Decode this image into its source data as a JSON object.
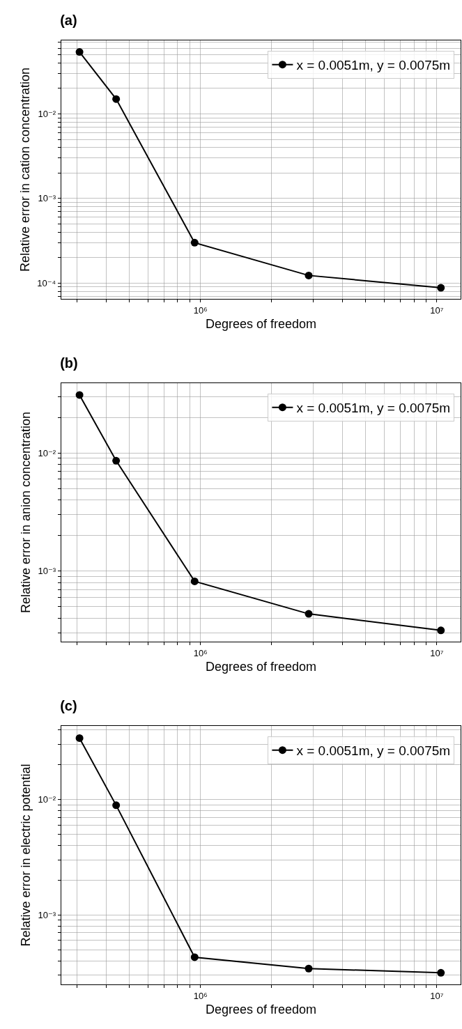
{
  "chart_data": [
    {
      "type": "line",
      "title": "(a)",
      "xlabel": "Degrees of freedom",
      "ylabel": "Relative error in cation concentration",
      "log": "xy",
      "grid": true,
      "legend": "top right",
      "marker": "circle",
      "line_style": "solid",
      "x": [
        308000,
        440000,
        945000,
        2870000,
        10400000
      ],
      "series": [
        {
          "name": "x = 0.0051m, y = 0.0075m",
          "color": "#000000",
          "values": [
            0.054,
            0.015,
            0.0003,
            0.000123,
            8.8e-05
          ]
        }
      ],
      "xlim": [
        258000,
        12600000
      ],
      "ylim": [
        6.5e-05,
        0.074
      ],
      "xticks": [
        {
          "value": 300000,
          "label": null
        },
        {
          "value": 400000,
          "label": null
        },
        {
          "value": 500000,
          "label": null
        },
        {
          "value": 600000,
          "label": null
        },
        {
          "value": 700000,
          "label": null
        },
        {
          "value": 800000,
          "label": null
        },
        {
          "value": 900000,
          "label": null
        },
        {
          "value": 1000000,
          "label": "10⁶"
        },
        {
          "value": 2000000,
          "label": null
        },
        {
          "value": 3000000,
          "label": null
        },
        {
          "value": 4000000,
          "label": null
        },
        {
          "value": 5000000,
          "label": null
        },
        {
          "value": 6000000,
          "label": null
        },
        {
          "value": 7000000,
          "label": null
        },
        {
          "value": 8000000,
          "label": null
        },
        {
          "value": 9000000,
          "label": null
        },
        {
          "value": 10000000,
          "label": "10⁷"
        }
      ],
      "yticks": [
        {
          "value": 7e-05,
          "label": null
        },
        {
          "value": 8e-05,
          "label": null
        },
        {
          "value": 9e-05,
          "label": null
        },
        {
          "value": 0.0001,
          "label": "10⁻⁴"
        },
        {
          "value": 0.0002,
          "label": null
        },
        {
          "value": 0.0003,
          "label": null
        },
        {
          "value": 0.0004,
          "label": null
        },
        {
          "value": 0.0005,
          "label": null
        },
        {
          "value": 0.0006,
          "label": null
        },
        {
          "value": 0.0007,
          "label": null
        },
        {
          "value": 0.0008,
          "label": null
        },
        {
          "value": 0.0009,
          "label": null
        },
        {
          "value": 0.001,
          "label": "10⁻³"
        },
        {
          "value": 0.002,
          "label": null
        },
        {
          "value": 0.003,
          "label": null
        },
        {
          "value": 0.004,
          "label": null
        },
        {
          "value": 0.005,
          "label": null
        },
        {
          "value": 0.006,
          "label": null
        },
        {
          "value": 0.007,
          "label": null
        },
        {
          "value": 0.008,
          "label": null
        },
        {
          "value": 0.009,
          "label": null
        },
        {
          "value": 0.01,
          "label": "10⁻²"
        },
        {
          "value": 0.02,
          "label": null
        },
        {
          "value": 0.03,
          "label": null
        },
        {
          "value": 0.04,
          "label": null
        },
        {
          "value": 0.05,
          "label": null
        },
        {
          "value": 0.06,
          "label": null
        },
        {
          "value": 0.07,
          "label": null
        }
      ]
    },
    {
      "type": "line",
      "title": "(b)",
      "xlabel": "Degrees of freedom",
      "ylabel": "Relative error in anion concentration",
      "log": "xy",
      "grid": true,
      "legend": "top right",
      "marker": "circle",
      "line_style": "solid",
      "x": [
        308000,
        440000,
        945000,
        2870000,
        10400000
      ],
      "series": [
        {
          "name": "x = 0.0051m, y = 0.0075m",
          "color": "#000000",
          "values": [
            0.031,
            0.0086,
            0.00082,
            0.000435,
            0.000315
          ]
        }
      ],
      "xlim": [
        258000,
        12600000
      ],
      "ylim": [
        0.000253,
        0.039
      ],
      "xticks": [
        {
          "value": 300000,
          "label": null
        },
        {
          "value": 400000,
          "label": null
        },
        {
          "value": 500000,
          "label": null
        },
        {
          "value": 600000,
          "label": null
        },
        {
          "value": 700000,
          "label": null
        },
        {
          "value": 800000,
          "label": null
        },
        {
          "value": 900000,
          "label": null
        },
        {
          "value": 1000000,
          "label": "10⁶"
        },
        {
          "value": 2000000,
          "label": null
        },
        {
          "value": 3000000,
          "label": null
        },
        {
          "value": 4000000,
          "label": null
        },
        {
          "value": 5000000,
          "label": null
        },
        {
          "value": 6000000,
          "label": null
        },
        {
          "value": 7000000,
          "label": null
        },
        {
          "value": 8000000,
          "label": null
        },
        {
          "value": 9000000,
          "label": null
        },
        {
          "value": 10000000,
          "label": "10⁷"
        }
      ],
      "yticks": [
        {
          "value": 0.0003,
          "label": null
        },
        {
          "value": 0.0004,
          "label": null
        },
        {
          "value": 0.0005,
          "label": null
        },
        {
          "value": 0.0006,
          "label": null
        },
        {
          "value": 0.0007,
          "label": null
        },
        {
          "value": 0.0008,
          "label": null
        },
        {
          "value": 0.0009,
          "label": null
        },
        {
          "value": 0.001,
          "label": "10⁻³"
        },
        {
          "value": 0.002,
          "label": null
        },
        {
          "value": 0.003,
          "label": null
        },
        {
          "value": 0.004,
          "label": null
        },
        {
          "value": 0.005,
          "label": null
        },
        {
          "value": 0.006,
          "label": null
        },
        {
          "value": 0.007,
          "label": null
        },
        {
          "value": 0.008,
          "label": null
        },
        {
          "value": 0.009,
          "label": null
        },
        {
          "value": 0.01,
          "label": "10⁻²"
        },
        {
          "value": 0.02,
          "label": null
        },
        {
          "value": 0.03,
          "label": null
        }
      ]
    },
    {
      "type": "line",
      "title": "(c)",
      "xlabel": "Degrees of freedom",
      "ylabel": "Relative error in electric potential",
      "log": "xy",
      "grid": true,
      "legend": "top right",
      "marker": "circle",
      "line_style": "solid",
      "x": [
        308000,
        440000,
        945000,
        2870000,
        10400000
      ],
      "series": [
        {
          "name": "x = 0.0051m, y = 0.0075m",
          "color": "#000000",
          "values": [
            0.034,
            0.0089,
            0.00043,
            0.000343,
            0.000315
          ]
        }
      ],
      "xlim": [
        258000,
        12600000
      ],
      "ylim": [
        0.00025,
        0.0433
      ],
      "xticks": [
        {
          "value": 300000,
          "label": null
        },
        {
          "value": 400000,
          "label": null
        },
        {
          "value": 500000,
          "label": null
        },
        {
          "value": 600000,
          "label": null
        },
        {
          "value": 700000,
          "label": null
        },
        {
          "value": 800000,
          "label": null
        },
        {
          "value": 900000,
          "label": null
        },
        {
          "value": 1000000,
          "label": "10⁶"
        },
        {
          "value": 2000000,
          "label": null
        },
        {
          "value": 3000000,
          "label": null
        },
        {
          "value": 4000000,
          "label": null
        },
        {
          "value": 5000000,
          "label": null
        },
        {
          "value": 6000000,
          "label": null
        },
        {
          "value": 7000000,
          "label": null
        },
        {
          "value": 8000000,
          "label": null
        },
        {
          "value": 9000000,
          "label": null
        },
        {
          "value": 10000000,
          "label": "10⁷"
        }
      ],
      "yticks": [
        {
          "value": 0.0003,
          "label": null
        },
        {
          "value": 0.0004,
          "label": null
        },
        {
          "value": 0.0005,
          "label": null
        },
        {
          "value": 0.0006,
          "label": null
        },
        {
          "value": 0.0007,
          "label": null
        },
        {
          "value": 0.0008,
          "label": null
        },
        {
          "value": 0.0009,
          "label": null
        },
        {
          "value": 0.001,
          "label": "10⁻³"
        },
        {
          "value": 0.002,
          "label": null
        },
        {
          "value": 0.003,
          "label": null
        },
        {
          "value": 0.004,
          "label": null
        },
        {
          "value": 0.005,
          "label": null
        },
        {
          "value": 0.006,
          "label": null
        },
        {
          "value": 0.007,
          "label": null
        },
        {
          "value": 0.008,
          "label": null
        },
        {
          "value": 0.009,
          "label": null
        },
        {
          "value": 0.01,
          "label": "10⁻²"
        },
        {
          "value": 0.02,
          "label": null
        },
        {
          "value": 0.03,
          "label": null
        },
        {
          "value": 0.04,
          "label": null
        }
      ]
    }
  ]
}
